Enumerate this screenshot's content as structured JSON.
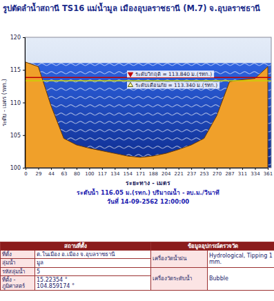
{
  "chart_data": {
    "type": "area",
    "title": "รูปตัดลำน้ำสถานี TS16 แม่น้ำมูล เมืองอุบลราชธานี (M.7) จ.อุบลราชธานี",
    "x_label": "ระยะทาง - เมตร",
    "y_label": "ระดับ - เมตร (รทก.)",
    "categories": [
      0,
      29,
      44,
      63,
      80,
      100,
      117,
      134,
      154,
      171,
      188,
      204,
      221,
      237,
      253,
      270,
      287,
      311,
      334,
      361
    ],
    "values": [
      116.2,
      115.5,
      109.5,
      104.5,
      103.5,
      103.0,
      102.6,
      102.2,
      101.8,
      101.6,
      101.8,
      102.2,
      102.8,
      103.5,
      104.5,
      108.0,
      113.2,
      113.5,
      113.7,
      115.5
    ],
    "color": "#f0a02a",
    "ylim": [
      100,
      120
    ],
    "yticks": [
      100,
      105,
      110,
      115,
      120
    ],
    "water_level": 116.05,
    "critical_level": {
      "value": 113.84,
      "label": "ระดับวิกฤติ = 113.840 ม.(รทก.)"
    },
    "warning_level": {
      "value": 113.34,
      "label": "ระดับเตือนภัย = 113.340 ม.(รทก.)"
    },
    "caption": [
      "ระดับน้ำ 116.05 ม.(รทก.) ปริมาณน้ำ - ลบ.ม./วินาที",
      "วันที่ 14-09-2562 12:00:00"
    ]
  },
  "table": {
    "header": [
      "สถานที่ตั้ง",
      "ข้อมูลอุปกรณ์ตรวจวัด"
    ],
    "left_rows": [
      [
        "ที่ตั้ง",
        "ต.ในเมือง อ.เมือง จ.อุบลราชธานี"
      ],
      [
        "ลุ่มน้ำ",
        "มูล"
      ],
      [
        "รหัสลุ่มน้ำ",
        "5"
      ],
      [
        "ที่ตั้ง - ภูมิศาสตร์",
        "15.22354 °",
        "104.859174 °"
      ]
    ],
    "right_rows": [
      [
        "เครื่องวัดน้ำฝน",
        "Hydrological, Tipping 1 mm."
      ],
      [
        "เครื่องวัดระดับน้ำ",
        "Bubble"
      ]
    ]
  }
}
